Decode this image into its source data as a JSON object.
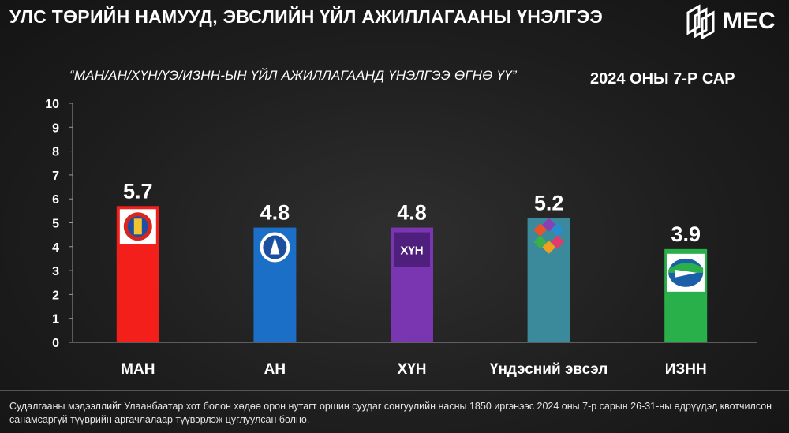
{
  "header": {
    "title": "УЛС ТӨРИЙН НАМУУД, ЭВСЛИЙН ҮЙЛ АЖИЛЛАГААНЫ ҮНЭЛГЭЭ",
    "logo_text": "MEC"
  },
  "chart_data": {
    "type": "bar",
    "title": "“МАН/АН/ХҮН/ҮЭ/ИЗНН-ЫН ҮЙЛ АЖИЛЛАГААНД ҮНЭЛГЭЭ ӨГНӨ ҮҮ”",
    "period": "2024 ОНЫ 7-Р САР",
    "categories": [
      "МАН",
      "АН",
      "ХҮН",
      "Үндэсний эвсэл",
      "ИЗНН"
    ],
    "values": [
      5.7,
      4.8,
      4.8,
      5.2,
      3.9
    ],
    "value_labels": [
      "5.7",
      "4.8",
      "4.8",
      "5.2",
      "3.9"
    ],
    "colors": [
      "#f21f1a",
      "#1c6fc6",
      "#7a36b1",
      "#3a8a9c",
      "#2ab04a"
    ],
    "icons": [
      "man-emblem-icon",
      "an-emblem-icon",
      "khun-logo-icon",
      "coalition-logo-icon",
      "iznn-logo-icon"
    ],
    "icon_texts": [
      "",
      "",
      "ХҮН",
      "",
      ""
    ],
    "yticks": [
      "0",
      "1",
      "2",
      "3",
      "4",
      "5",
      "6",
      "7",
      "8",
      "9",
      "10"
    ],
    "ylim": [
      0,
      10
    ],
    "xlabel": "",
    "ylabel": "",
    "grid": false,
    "legend": "none"
  },
  "footer": {
    "note": "Судалгааны мэдээллийг Улаанбаатар хот болон хөдөө орон нутагт оршин суудаг сонгуулийн насны 1850 иргэнээс 2024 оны 7-р сарын 26-31-ны өдрүүдэд квотчилсон санамсаргүй түүврийн аргачлалаар түүвэрлэж цуглуулсан болно."
  }
}
